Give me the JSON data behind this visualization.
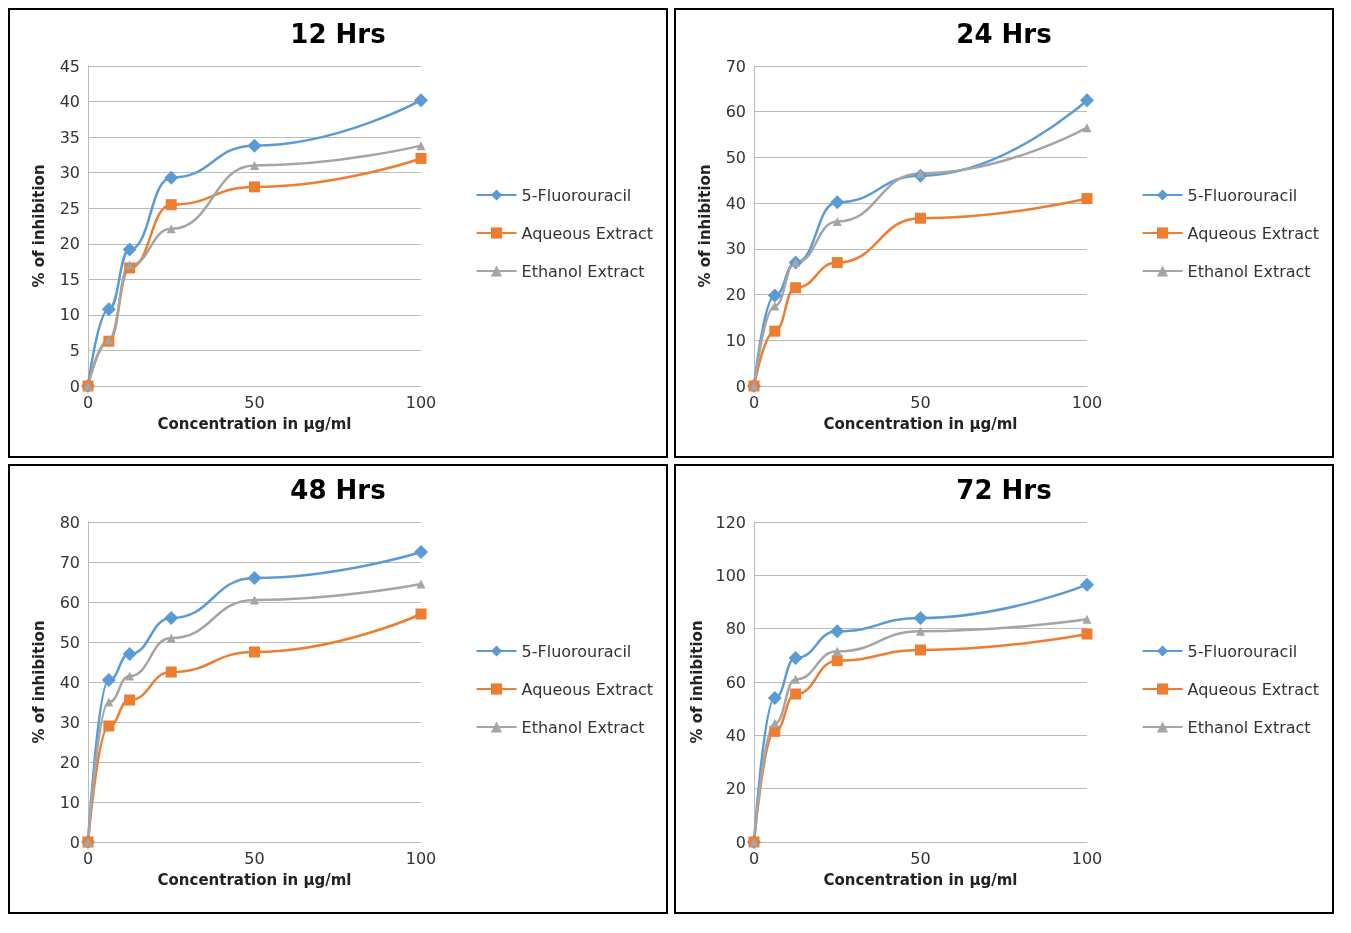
{
  "chart_data": [
    {
      "type": "line",
      "title": "12 Hrs",
      "xlabel": "Concentration in µg/ml",
      "ylabel": "% of inhibition",
      "x": [
        0,
        6.25,
        12.5,
        25,
        50,
        100
      ],
      "xlim": [
        0,
        100
      ],
      "xticks": [
        0,
        50,
        100
      ],
      "ylim": [
        0,
        45
      ],
      "yticks": [
        0,
        5,
        10,
        15,
        20,
        25,
        30,
        35,
        40,
        45
      ],
      "grid": "y",
      "legend": "right",
      "series": [
        {
          "name": "5-Fluorouracil",
          "color": "#5b9bd5",
          "marker": "diamond",
          "values": [
            0,
            10.8,
            19.2,
            29.3,
            33.8,
            40.2
          ]
        },
        {
          "name": "Aqueous Extract",
          "color": "#ed7d31",
          "marker": "square",
          "values": [
            0,
            6.3,
            16.6,
            25.5,
            28,
            32
          ]
        },
        {
          "name": "Ethanol Extract",
          "color": "#a5a5a5",
          "marker": "triangle",
          "values": [
            0,
            6.5,
            17,
            22.1,
            31,
            33.8
          ]
        }
      ]
    },
    {
      "type": "line",
      "title": "24 Hrs",
      "xlabel": "Concentration in µg/ml",
      "ylabel": "% of inhibition",
      "x": [
        0,
        6.25,
        12.5,
        25,
        50,
        100
      ],
      "xlim": [
        0,
        100
      ],
      "xticks": [
        0,
        50,
        100
      ],
      "ylim": [
        0,
        70
      ],
      "yticks": [
        0,
        10,
        20,
        30,
        40,
        50,
        60,
        70
      ],
      "grid": "y",
      "legend": "right",
      "series": [
        {
          "name": "5-Fluorouracil",
          "color": "#5b9bd5",
          "marker": "diamond",
          "values": [
            0,
            19.8,
            27,
            40.2,
            46,
            62.5
          ]
        },
        {
          "name": "Aqueous Extract",
          "color": "#ed7d31",
          "marker": "square",
          "values": [
            0,
            12,
            21.5,
            27,
            36.7,
            41
          ]
        },
        {
          "name": "Ethanol Extract",
          "color": "#a5a5a5",
          "marker": "triangle",
          "values": [
            0,
            17.5,
            27,
            36,
            46.5,
            56.5
          ]
        }
      ]
    },
    {
      "type": "line",
      "title": "48 Hrs",
      "xlabel": "Concentration in µg/ml",
      "ylabel": "% of inhibition",
      "x": [
        0,
        6.25,
        12.5,
        25,
        50,
        100
      ],
      "xlim": [
        0,
        100
      ],
      "xticks": [
        0,
        50,
        100
      ],
      "ylim": [
        0,
        80
      ],
      "yticks": [
        0,
        10,
        20,
        30,
        40,
        50,
        60,
        70,
        80
      ],
      "grid": "y",
      "legend": "right",
      "series": [
        {
          "name": "5-Fluorouracil",
          "color": "#5b9bd5",
          "marker": "diamond",
          "values": [
            0,
            40.5,
            47,
            56,
            66,
            72.5
          ]
        },
        {
          "name": "Aqueous Extract",
          "color": "#ed7d31",
          "marker": "square",
          "values": [
            0,
            29,
            35.5,
            42.5,
            47.5,
            57
          ]
        },
        {
          "name": "Ethanol Extract",
          "color": "#a5a5a5",
          "marker": "triangle",
          "values": [
            0,
            35,
            41.5,
            51,
            60.5,
            64.5
          ]
        }
      ]
    },
    {
      "type": "line",
      "title": "72 Hrs",
      "xlabel": "Concentration in µg/ml",
      "ylabel": "% of inhibition",
      "x": [
        0,
        6.25,
        12.5,
        25,
        50,
        100
      ],
      "xlim": [
        0,
        100
      ],
      "xticks": [
        0,
        50,
        100
      ],
      "ylim": [
        0,
        120
      ],
      "yticks": [
        0,
        20,
        40,
        60,
        80,
        100,
        120
      ],
      "grid": "y",
      "legend": "right",
      "series": [
        {
          "name": "5-Fluorouracil",
          "color": "#5b9bd5",
          "marker": "diamond",
          "values": [
            0,
            54,
            69,
            79,
            84,
            96.5
          ]
        },
        {
          "name": "Aqueous Extract",
          "color": "#ed7d31",
          "marker": "square",
          "values": [
            0,
            41.5,
            55.5,
            68,
            72,
            78
          ]
        },
        {
          "name": "Ethanol Extract",
          "color": "#a5a5a5",
          "marker": "triangle",
          "values": [
            0,
            44.5,
            61,
            71.5,
            79,
            83.5
          ]
        }
      ]
    }
  ]
}
